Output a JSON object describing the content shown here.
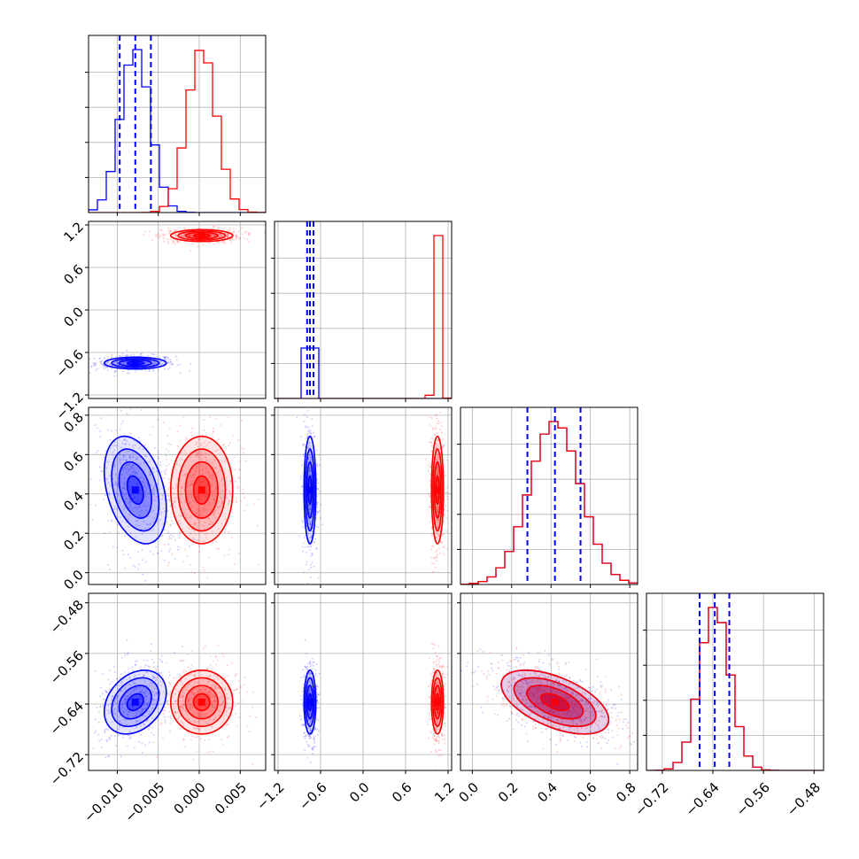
{
  "chart_data": {
    "type": "corner",
    "title": "",
    "grid": true,
    "colors": {
      "series_a": "#0000ff",
      "series_b": "#ff0000"
    },
    "parameters": [
      {
        "index": 0,
        "range": [
          -0.0135,
          0.0081
        ],
        "ticks": [
          -0.01,
          -0.005,
          0.0,
          0.005
        ],
        "tick_labels": [
          "−0.010",
          "−0.005",
          "0.000",
          "0.005"
        ]
      },
      {
        "index": 1,
        "range": [
          -1.25,
          1.25
        ],
        "ticks": [
          -1.2,
          -0.6,
          0.0,
          0.6,
          1.2
        ],
        "tick_labels": [
          "−1.2",
          "−0.6",
          "0.0",
          "0.6",
          "1.2"
        ]
      },
      {
        "index": 2,
        "range": [
          -0.06,
          0.84
        ],
        "ticks": [
          0.0,
          0.2,
          0.4,
          0.6,
          0.8
        ],
        "tick_labels": [
          "0.0",
          "0.2",
          "0.4",
          "0.6",
          "0.8"
        ]
      },
      {
        "index": 3,
        "range": [
          -0.745,
          -0.465
        ],
        "ticks": [
          -0.72,
          -0.64,
          -0.56,
          -0.48
        ],
        "tick_labels": [
          "−0.72",
          "−0.64",
          "−0.56",
          "−0.48"
        ]
      }
    ],
    "series": [
      {
        "color": "#0000ff",
        "means": [
          -0.0078,
          -0.75,
          0.42,
          -0.637
        ],
        "sds": [
          0.0018,
          0.04,
          0.13,
          0.024
        ],
        "quantiles_dashed": [
          [
            -0.0097,
            -0.0078,
            -0.0059
          ],
          [
            -0.79,
            -0.75,
            -0.7
          ],
          [
            0.28,
            0.42,
            0.55
          ],
          [
            -0.661,
            -0.637,
            -0.614
          ]
        ]
      },
      {
        "color": "#ff0000",
        "means": [
          0.0003,
          1.05,
          0.42,
          -0.637
        ],
        "sds": [
          0.0018,
          0.04,
          0.13,
          0.024
        ]
      }
    ],
    "correlations": [
      {
        "pair": [
          0,
          2
        ],
        "series": 0,
        "rho": -0.35
      },
      {
        "pair": [
          0,
          3
        ],
        "series": 0,
        "rho": 0.3
      },
      {
        "pair": [
          2,
          3
        ],
        "series": 0,
        "rho": -0.55
      },
      {
        "pair": [
          2,
          3
        ],
        "series": 1,
        "rho": -0.55
      }
    ]
  }
}
